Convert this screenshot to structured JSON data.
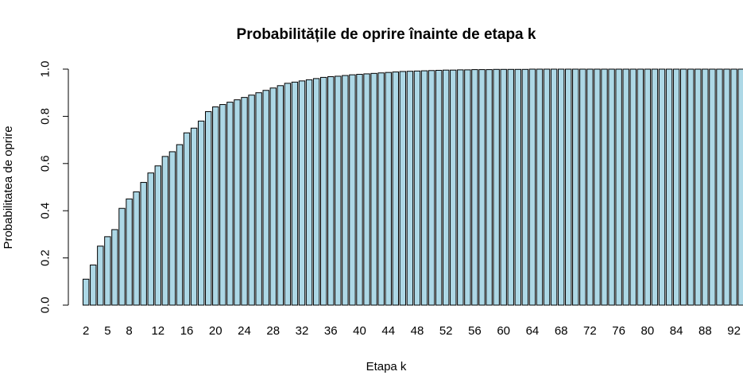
{
  "chart_data": {
    "type": "bar",
    "title": "Probabilitățile de oprire înainte de etapa k",
    "xlabel": "Etapa k",
    "ylabel": "Probabilitatea de oprire",
    "ylim": [
      0,
      1
    ],
    "yticks": [
      "0.0",
      "0.2",
      "0.4",
      "0.6",
      "0.8",
      "1.0"
    ],
    "x_tick_labels": [
      "2",
      "5",
      "8",
      "12",
      "16",
      "20",
      "24",
      "28",
      "32",
      "36",
      "40",
      "44",
      "48",
      "52",
      "56",
      "60",
      "64",
      "68",
      "72",
      "76",
      "80",
      "84",
      "88",
      "92"
    ],
    "x_tick_positions": [
      2,
      5,
      8,
      12,
      16,
      20,
      24,
      28,
      32,
      36,
      40,
      44,
      48,
      52,
      56,
      60,
      64,
      68,
      72,
      76,
      80,
      84,
      88,
      92
    ],
    "bar_color": "#add8e6",
    "categories": [
      2,
      3,
      4,
      5,
      6,
      7,
      8,
      9,
      10,
      11,
      12,
      13,
      14,
      15,
      16,
      17,
      18,
      19,
      20,
      21,
      22,
      23,
      24,
      25,
      26,
      27,
      28,
      29,
      30,
      31,
      32,
      33,
      34,
      35,
      36,
      37,
      38,
      39,
      40,
      41,
      42,
      43,
      44,
      45,
      46,
      47,
      48,
      49,
      50,
      51,
      52,
      53,
      54,
      55,
      56,
      57,
      58,
      59,
      60,
      61,
      62,
      63,
      64,
      65,
      66,
      67,
      68,
      69,
      70,
      71,
      72,
      73,
      74,
      75,
      76,
      77,
      78,
      79,
      80,
      81,
      82,
      83,
      84,
      85,
      86,
      87,
      88,
      89,
      90,
      91,
      92,
      93
    ],
    "values": [
      0.11,
      0.17,
      0.25,
      0.29,
      0.32,
      0.41,
      0.45,
      0.48,
      0.52,
      0.56,
      0.59,
      0.63,
      0.65,
      0.68,
      0.73,
      0.75,
      0.78,
      0.82,
      0.84,
      0.85,
      0.86,
      0.87,
      0.88,
      0.89,
      0.9,
      0.91,
      0.92,
      0.93,
      0.94,
      0.945,
      0.95,
      0.955,
      0.96,
      0.965,
      0.968,
      0.97,
      0.973,
      0.976,
      0.978,
      0.98,
      0.982,
      0.984,
      0.986,
      0.988,
      0.99,
      0.991,
      0.992,
      0.993,
      0.994,
      0.995,
      0.996,
      0.996,
      0.997,
      0.997,
      0.998,
      0.998,
      0.998,
      0.999,
      0.999,
      0.999,
      0.999,
      0.999,
      1.0,
      1.0,
      1.0,
      1.0,
      1.0,
      1.0,
      1.0,
      1.0,
      1.0,
      1.0,
      1.0,
      1.0,
      1.0,
      1.0,
      1.0,
      1.0,
      1.0,
      1.0,
      1.0,
      1.0,
      1.0,
      1.0,
      1.0,
      1.0,
      1.0,
      1.0,
      1.0,
      1.0,
      1.0,
      1.0
    ]
  }
}
